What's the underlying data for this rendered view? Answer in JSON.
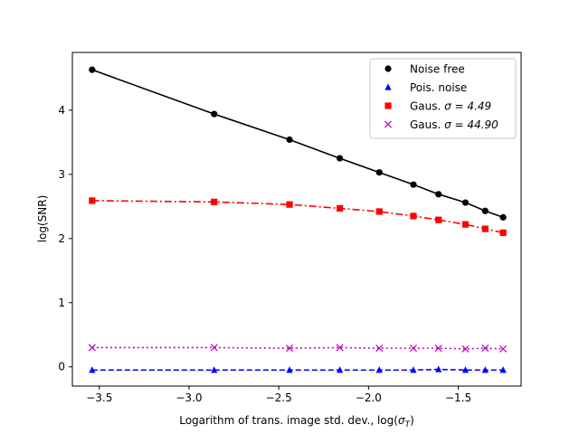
{
  "chart_data": {
    "type": "line",
    "title": "",
    "xlabel": "Logarithm of trans. image std. dev., log(",
    "xlabel_symbol": "σ",
    "xlabel_subscript": "T",
    "xlabel_close": ")",
    "ylabel": "log(SNR)",
    "xlim": [
      -3.65,
      -1.15
    ],
    "ylim": [
      -0.3,
      4.9
    ],
    "xticks": [
      -3.5,
      -3.0,
      -2.5,
      -2.0,
      -1.5
    ],
    "xtick_labels": [
      "−3.5",
      "−3.0",
      "−2.5",
      "−2.0",
      "−1.5"
    ],
    "yticks": [
      0,
      1,
      2,
      3,
      4
    ],
    "ytick_labels": [
      "0",
      "1",
      "2",
      "3",
      "4"
    ],
    "grid": false,
    "legend_position": "top-right",
    "x": [
      -3.54,
      -2.86,
      -2.44,
      -2.16,
      -1.94,
      -1.75,
      -1.61,
      -1.46,
      -1.35,
      -1.25
    ],
    "series": [
      {
        "name": "Noise free",
        "legend_prefix": "Noise free",
        "legend_math": "",
        "color": "#000000",
        "marker": "circle",
        "linestyle": "solid",
        "values": [
          4.63,
          3.94,
          3.54,
          3.25,
          3.03,
          2.84,
          2.69,
          2.56,
          2.43,
          2.33
        ]
      },
      {
        "name": "Pois. noise",
        "legend_prefix": "Pois. noise",
        "legend_math": "",
        "color": "#0000ff",
        "marker": "triangle",
        "linestyle": "dashed",
        "values": [
          -0.05,
          -0.05,
          -0.05,
          -0.05,
          -0.05,
          -0.05,
          -0.04,
          -0.05,
          -0.05,
          -0.05
        ]
      },
      {
        "name": "Gaus. σ = 4.49",
        "legend_prefix": "Gaus. ",
        "legend_math": "σ = 4.49",
        "color": "#ff0000",
        "marker": "square",
        "linestyle": "dashdot",
        "values": [
          2.59,
          2.57,
          2.53,
          2.47,
          2.42,
          2.35,
          2.29,
          2.22,
          2.15,
          2.09
        ]
      },
      {
        "name": "Gaus. σ = 44.90",
        "legend_prefix": "Gaus. ",
        "legend_math": "σ = 44.90",
        "color": "#bf00bf",
        "marker": "x",
        "linestyle": "dotted",
        "values": [
          0.3,
          0.3,
          0.29,
          0.3,
          0.29,
          0.29,
          0.29,
          0.28,
          0.29,
          0.28
        ]
      }
    ]
  }
}
